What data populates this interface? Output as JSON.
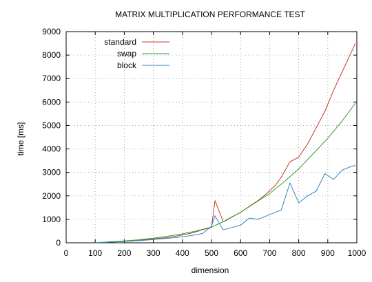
{
  "chart_data": {
    "type": "line",
    "title": "MATRIX MULTIPLICATION PERFORMANCE TEST",
    "xlabel": "dimension",
    "ylabel": "time [ms]",
    "xlim": [
      0,
      1000
    ],
    "ylim": [
      0,
      9000
    ],
    "x_ticks": [
      0,
      100,
      200,
      300,
      400,
      500,
      600,
      700,
      800,
      900,
      1000
    ],
    "y_ticks": [
      0,
      1000,
      2000,
      3000,
      4000,
      5000,
      6000,
      7000,
      8000,
      9000
    ],
    "grid": true,
    "legend_position": "top-left",
    "series": [
      {
        "name": "standard",
        "color": "#c0392b",
        "x": [
          110,
          140,
          170,
          200,
          230,
          260,
          290,
          320,
          350,
          380,
          410,
          440,
          470,
          500,
          512,
          540,
          570,
          600,
          630,
          660,
          690,
          720,
          740,
          770,
          800,
          830,
          860,
          890,
          920,
          950,
          980,
          995
        ],
        "y": [
          10,
          20,
          40,
          60,
          90,
          120,
          150,
          190,
          230,
          290,
          360,
          440,
          560,
          650,
          1800,
          900,
          1100,
          1300,
          1550,
          1800,
          2100,
          2450,
          2800,
          3450,
          3650,
          4200,
          4900,
          5600,
          6500,
          7300,
          8100,
          8500
        ]
      },
      {
        "name": "swap",
        "color": "#2ca02c",
        "x": [
          100,
          150,
          200,
          250,
          300,
          350,
          400,
          450,
          500,
          550,
          600,
          650,
          700,
          750,
          800,
          850,
          900,
          950,
          995
        ],
        "y": [
          10,
          40,
          80,
          130,
          200,
          280,
          380,
          510,
          670,
          950,
          1300,
          1700,
          2100,
          2600,
          3150,
          3800,
          4450,
          5200,
          5950
        ]
      },
      {
        "name": "block",
        "color": "#2e86c1",
        "x": [
          110,
          140,
          170,
          200,
          230,
          260,
          290,
          320,
          350,
          380,
          410,
          440,
          470,
          500,
          512,
          540,
          570,
          600,
          630,
          660,
          690,
          720,
          740,
          770,
          800,
          830,
          860,
          890,
          920,
          950,
          980,
          995
        ],
        "y": [
          10,
          20,
          40,
          60,
          80,
          100,
          130,
          160,
          190,
          230,
          270,
          330,
          400,
          700,
          1150,
          550,
          650,
          750,
          1050,
          1000,
          1150,
          1300,
          1400,
          2550,
          1700,
          2000,
          2200,
          2950,
          2700,
          3100,
          3250,
          3300
        ]
      }
    ]
  }
}
